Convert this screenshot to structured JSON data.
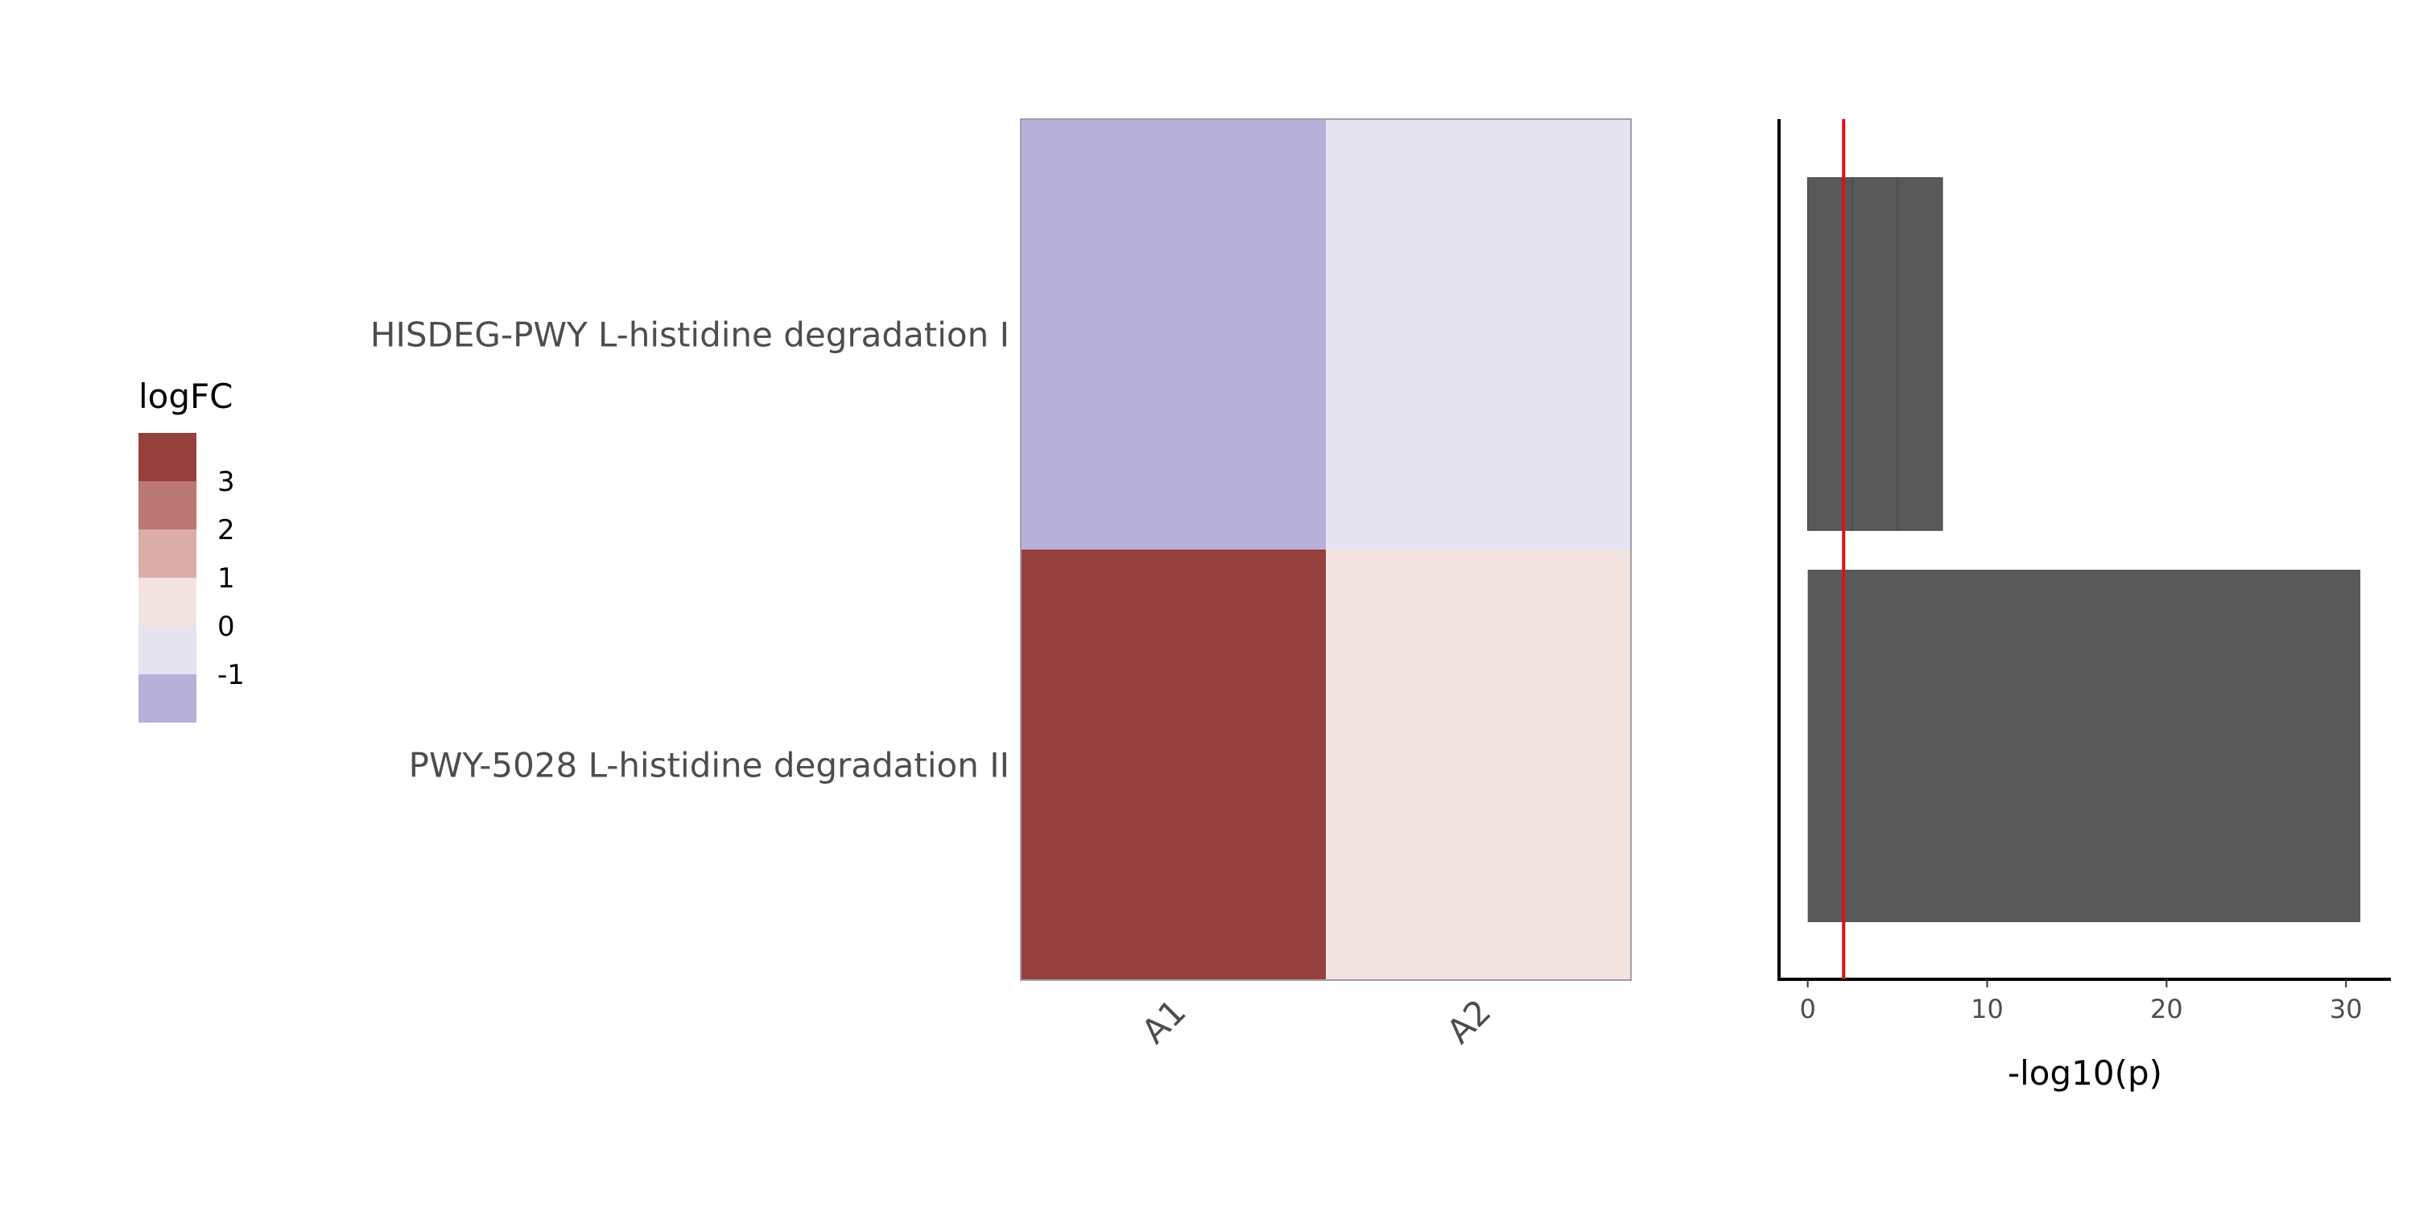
{
  "chart_data": [
    {
      "type": "heatmap",
      "rows": [
        "HISDEG-PWY L-histidine degradation I",
        "PWY-5028 L-histidine degradation II"
      ],
      "columns": [
        "A1",
        "A2"
      ],
      "values": [
        [
          -1.5,
          -0.3
        ],
        [
          3.5,
          0.6
        ]
      ],
      "legend": {
        "title": "logFC",
        "labels": [
          "3",
          "2",
          "1",
          "0",
          "-1"
        ],
        "bins": [
          {
            "color": "#96403d"
          },
          {
            "color": "#bb7973"
          },
          {
            "color": "#dbaeaa"
          },
          {
            "color": "#f2e3e1"
          },
          {
            "color": "#e6e4f1"
          },
          {
            "color": "#b7b0d9"
          }
        ],
        "placement": "left"
      },
      "border_color": "#a09fa8"
    },
    {
      "type": "bar",
      "orientation": "horizontal",
      "xlabel": "-log10(p)",
      "xlim": [
        -1.6,
        32.5
      ],
      "xticks": [
        "0",
        "10",
        "20",
        "30"
      ],
      "xtick_values": [
        0,
        10,
        20,
        30
      ],
      "bars": [
        {
          "row": 0,
          "segments": [
            2.5,
            2.5,
            2.5
          ]
        },
        {
          "row": 1,
          "segments": [
            30.8
          ]
        }
      ],
      "bar_color": "#595959",
      "threshold_line": {
        "value": 2.0,
        "color": "#dd1111"
      },
      "grid": false
    }
  ]
}
